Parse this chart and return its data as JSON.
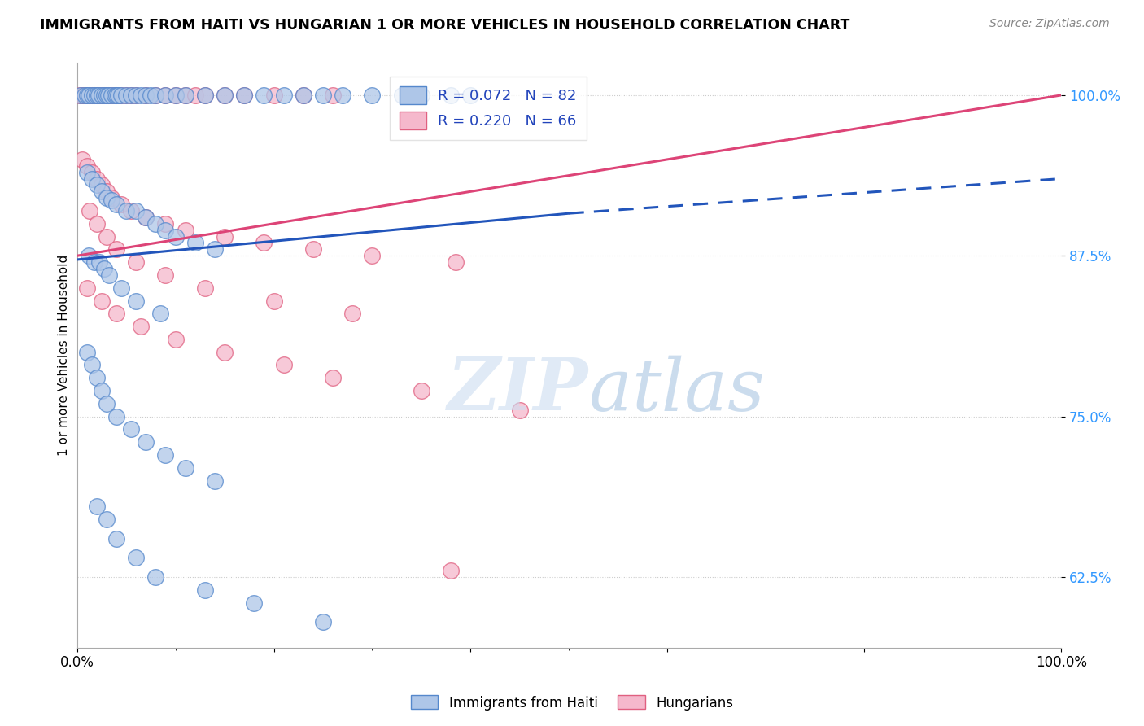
{
  "title": "IMMIGRANTS FROM HAITI VS HUNGARIAN 1 OR MORE VEHICLES IN HOUSEHOLD CORRELATION CHART",
  "source": "Source: ZipAtlas.com",
  "ylabel": "1 or more Vehicles in Household",
  "yticks": [
    62.5,
    75.0,
    87.5,
    100.0
  ],
  "ytick_labels": [
    "62.5%",
    "75.0%",
    "87.5%",
    "100.0%"
  ],
  "xmin": 0.0,
  "xmax": 100.0,
  "ymin": 57.0,
  "ymax": 102.5,
  "haiti_R": 0.072,
  "haiti_N": 82,
  "hungarian_R": 0.22,
  "hungarian_N": 66,
  "haiti_color": "#aec6e8",
  "haiti_edge_color": "#5588cc",
  "hungarian_color": "#f5b8cc",
  "hungarian_edge_color": "#e06080",
  "haiti_line_color": "#2255bb",
  "hungarian_line_color": "#dd4477",
  "haiti_line_solid_end": 50.0,
  "haiti_line_y0": 87.2,
  "haiti_line_y_solid_end": 90.8,
  "haiti_line_y100": 93.5,
  "hungarian_line_y0": 87.5,
  "hungarian_line_y100": 100.0,
  "haiti_scatter_x": [
    0.4,
    0.8,
    1.0,
    1.2,
    1.5,
    1.8,
    2.0,
    2.2,
    2.5,
    2.8,
    3.0,
    3.2,
    3.5,
    3.8,
    4.0,
    4.2,
    4.5,
    5.0,
    5.5,
    6.0,
    6.5,
    7.0,
    7.5,
    8.0,
    9.0,
    10.0,
    11.0,
    13.0,
    15.0,
    17.0,
    19.0,
    21.0,
    23.0,
    25.0,
    27.0,
    30.0,
    33.0,
    35.0,
    38.0,
    40.0,
    1.0,
    1.5,
    2.0,
    2.5,
    3.0,
    3.5,
    4.0,
    5.0,
    6.0,
    7.0,
    8.0,
    9.0,
    10.0,
    12.0,
    14.0,
    1.2,
    1.8,
    2.3,
    2.8,
    3.3,
    4.5,
    6.0,
    8.5,
    1.0,
    1.5,
    2.0,
    2.5,
    3.0,
    4.0,
    5.5,
    7.0,
    9.0,
    11.0,
    14.0,
    2.0,
    3.0,
    4.0,
    6.0,
    8.0,
    13.0,
    18.0,
    25.0
  ],
  "haiti_scatter_y": [
    100.0,
    100.0,
    100.0,
    100.0,
    100.0,
    100.0,
    100.0,
    100.0,
    100.0,
    100.0,
    100.0,
    100.0,
    100.0,
    100.0,
    100.0,
    100.0,
    100.0,
    100.0,
    100.0,
    100.0,
    100.0,
    100.0,
    100.0,
    100.0,
    100.0,
    100.0,
    100.0,
    100.0,
    100.0,
    100.0,
    100.0,
    100.0,
    100.0,
    100.0,
    100.0,
    100.0,
    100.0,
    100.0,
    100.0,
    100.0,
    94.0,
    93.5,
    93.0,
    92.5,
    92.0,
    91.8,
    91.5,
    91.0,
    91.0,
    90.5,
    90.0,
    89.5,
    89.0,
    88.5,
    88.0,
    87.5,
    87.0,
    87.0,
    86.5,
    86.0,
    85.0,
    84.0,
    83.0,
    80.0,
    79.0,
    78.0,
    77.0,
    76.0,
    75.0,
    74.0,
    73.0,
    72.0,
    71.0,
    70.0,
    68.0,
    67.0,
    65.5,
    64.0,
    62.5,
    61.5,
    60.5,
    59.0
  ],
  "hungarian_scatter_x": [
    0.3,
    0.6,
    0.9,
    1.2,
    1.5,
    1.8,
    2.0,
    2.3,
    2.6,
    2.9,
    3.2,
    3.6,
    4.0,
    4.5,
    5.0,
    5.5,
    6.0,
    7.0,
    8.0,
    9.0,
    10.0,
    11.0,
    12.0,
    13.0,
    15.0,
    17.0,
    20.0,
    23.0,
    26.0,
    0.5,
    1.0,
    1.5,
    2.0,
    2.5,
    3.0,
    3.5,
    4.5,
    5.5,
    7.0,
    9.0,
    11.0,
    15.0,
    19.0,
    24.0,
    30.0,
    38.5,
    1.3,
    2.0,
    3.0,
    4.0,
    6.0,
    9.0,
    13.0,
    20.0,
    28.0,
    1.0,
    2.5,
    4.0,
    6.5,
    10.0,
    15.0,
    21.0,
    26.0,
    35.0,
    45.0,
    38.0
  ],
  "hungarian_scatter_y": [
    100.0,
    100.0,
    100.0,
    100.0,
    100.0,
    100.0,
    100.0,
    100.0,
    100.0,
    100.0,
    100.0,
    100.0,
    100.0,
    100.0,
    100.0,
    100.0,
    100.0,
    100.0,
    100.0,
    100.0,
    100.0,
    100.0,
    100.0,
    100.0,
    100.0,
    100.0,
    100.0,
    100.0,
    100.0,
    95.0,
    94.5,
    94.0,
    93.5,
    93.0,
    92.5,
    92.0,
    91.5,
    91.0,
    90.5,
    90.0,
    89.5,
    89.0,
    88.5,
    88.0,
    87.5,
    87.0,
    91.0,
    90.0,
    89.0,
    88.0,
    87.0,
    86.0,
    85.0,
    84.0,
    83.0,
    85.0,
    84.0,
    83.0,
    82.0,
    81.0,
    80.0,
    79.0,
    78.0,
    77.0,
    75.5,
    63.0
  ]
}
